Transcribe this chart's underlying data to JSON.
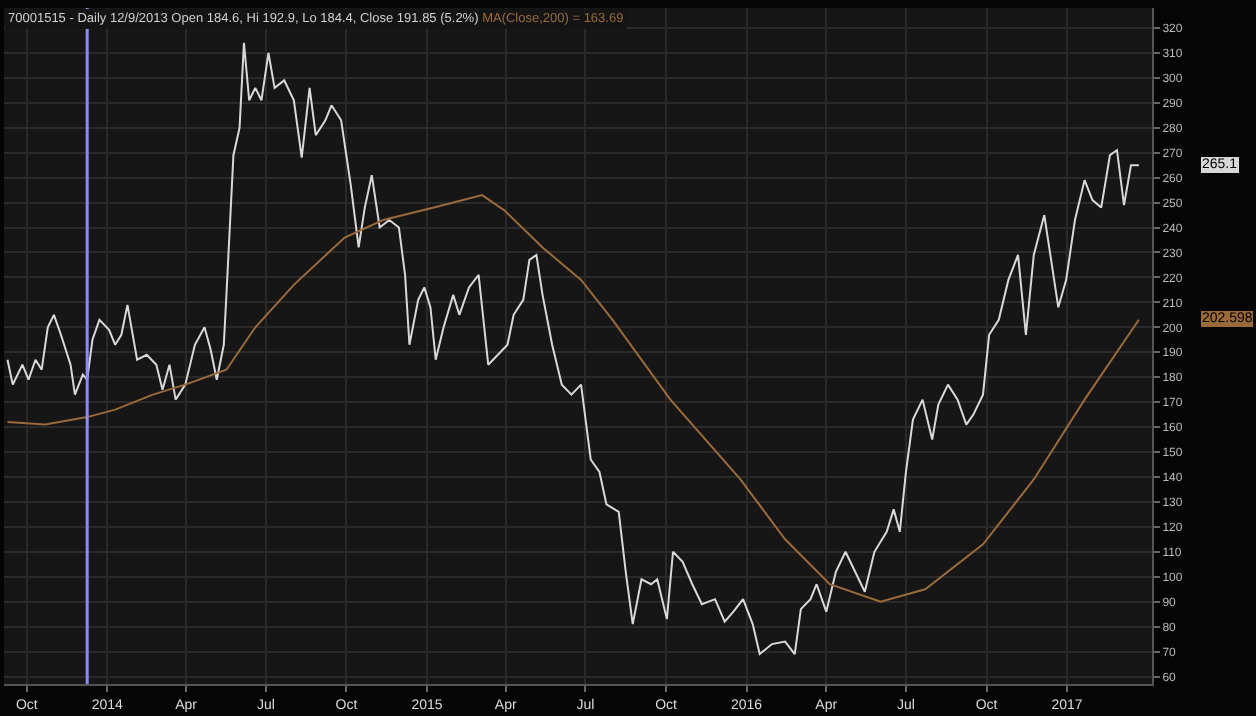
{
  "chart_data": {
    "type": "line",
    "title": "70001515 - Daily 12/9/2013 Open 184.6, Hi 192.9, Lo 184.4, Close 191.85 (5.2%)",
    "subtitle": "MA(Close,200) = 163.69",
    "series": [
      {
        "color": "#d8d8d8",
        "x": [
          "2013-09-09",
          "2013-09-15",
          "2013-09-26",
          "2013-10-03",
          "2013-10-11",
          "2013-10-18",
          "2013-10-25",
          "2013-11-01",
          "2013-11-09",
          "2013-11-20",
          "2013-11-25",
          "2013-12-04",
          "2013-12-09",
          "2013-12-15",
          "2013-12-23",
          "2014-01-03",
          "2014-01-10",
          "2014-01-17",
          "2014-01-24",
          "2014-02-04",
          "2014-02-15",
          "2014-02-26",
          "2014-03-05",
          "2014-03-13",
          "2014-03-20",
          "2014-03-31",
          "2014-04-11",
          "2014-04-22",
          "2014-04-29",
          "2014-05-06",
          "2014-05-14",
          "2014-05-17",
          "2014-05-25",
          "2014-06-01",
          "2014-06-06",
          "2014-06-12",
          "2014-06-19",
          "2014-06-26",
          "2014-07-04",
          "2014-07-11",
          "2014-07-22",
          "2014-08-02",
          "2014-08-11",
          "2014-08-20",
          "2014-08-27",
          "2014-09-07",
          "2014-09-14",
          "2014-09-25",
          "2014-10-06",
          "2014-10-15",
          "2014-10-22",
          "2014-10-30",
          "2014-11-08",
          "2014-11-19",
          "2014-11-30",
          "2014-12-07",
          "2014-12-12",
          "2014-12-22",
          "2014-12-29",
          "2015-01-05",
          "2015-01-11",
          "2015-01-20",
          "2015-01-31",
          "2015-02-07",
          "2015-02-18",
          "2015-03-01",
          "2015-03-12",
          "2015-03-23",
          "2015-04-03",
          "2015-04-10",
          "2015-04-21",
          "2015-04-28",
          "2015-05-06",
          "2015-05-13",
          "2015-05-24",
          "2015-06-04",
          "2015-06-15",
          "2015-06-26",
          "2015-07-07",
          "2015-07-17",
          "2015-07-25",
          "2015-08-08",
          "2015-08-16",
          "2015-08-24",
          "2015-09-03",
          "2015-09-14",
          "2015-09-21",
          "2015-10-02",
          "2015-10-09",
          "2015-10-20",
          "2015-10-31",
          "2015-11-11",
          "2015-11-26",
          "2015-12-07",
          "2015-12-17",
          "2015-12-28",
          "2016-01-08",
          "2016-01-16",
          "2016-01-30",
          "2016-02-14",
          "2016-02-25",
          "2016-03-03",
          "2016-03-14",
          "2016-03-21",
          "2016-04-01",
          "2016-04-12",
          "2016-04-23",
          "2016-05-04",
          "2016-05-15",
          "2016-05-26",
          "2016-06-09",
          "2016-06-17",
          "2016-06-24",
          "2016-07-01",
          "2016-07-09",
          "2016-07-20",
          "2016-07-31",
          "2016-08-07",
          "2016-08-18",
          "2016-08-29",
          "2016-09-08",
          "2016-09-16",
          "2016-09-27",
          "2016-10-04",
          "2016-10-15",
          "2016-10-26",
          "2016-11-06",
          "2016-11-15",
          "2016-11-24",
          "2016-12-06",
          "2016-12-22",
          "2016-12-31",
          "2017-01-10",
          "2017-01-21",
          "2017-01-30",
          "2017-02-09",
          "2017-02-19",
          "2017-02-27",
          "2017-03-07",
          "2017-03-15",
          "2017-03-24"
        ],
        "values": [
          187,
          177,
          185,
          179,
          187,
          183,
          200,
          205,
          197,
          185,
          173,
          181,
          179,
          195,
          203,
          199,
          193,
          197,
          209,
          187,
          189,
          185,
          175,
          185,
          171,
          177,
          193,
          200,
          191,
          179,
          193,
          213,
          269,
          280,
          314,
          291,
          296,
          291,
          310,
          296,
          299,
          291,
          268,
          296,
          277,
          283,
          289,
          283,
          257,
          232,
          248,
          261,
          240,
          243,
          240,
          221,
          193,
          211,
          216,
          208,
          187,
          200,
          213,
          205,
          216,
          221,
          185,
          189,
          193,
          205,
          211,
          227,
          229,
          213,
          193,
          177,
          173,
          177,
          147,
          142,
          129,
          126,
          102,
          81,
          99,
          97,
          99,
          83,
          110,
          106,
          97,
          89,
          91,
          82,
          86,
          91,
          81,
          69,
          73,
          74,
          69,
          87,
          91,
          97,
          86,
          102,
          110,
          102,
          94,
          110,
          118,
          127,
          118,
          142,
          163,
          171,
          155,
          169,
          177,
          171,
          161,
          165,
          173,
          197,
          203,
          219,
          229,
          197,
          229,
          245,
          208,
          219,
          243,
          259,
          251,
          248,
          269,
          271,
          249,
          265,
          265
        ]
      },
      {
        "color": "#9a6a3a",
        "x": [
          "2013-09-09",
          "2013-10-22",
          "2013-12-09",
          "2014-01-10",
          "2014-02-22",
          "2014-03-31",
          "2014-05-17",
          "2014-06-19",
          "2014-08-02",
          "2014-09-29",
          "2014-11-12",
          "2015-01-09",
          "2015-03-05",
          "2015-03-30",
          "2015-05-13",
          "2015-06-26",
          "2015-08-01",
          "2015-10-06",
          "2015-12-25",
          "2016-02-14",
          "2016-04-05",
          "2016-06-02",
          "2016-07-23",
          "2016-09-27",
          "2016-11-24",
          "2017-01-21",
          "2017-03-24"
        ],
        "values": [
          162,
          161,
          164,
          167,
          173,
          177,
          183,
          200,
          217,
          236,
          243,
          248,
          253,
          247,
          232,
          219,
          203,
          171,
          139,
          115,
          97,
          90,
          95,
          113,
          139,
          171,
          203
        ]
      }
    ],
    "annotations": [
      "265.1",
      "202.598"
    ],
    "ref_lines": [
      {
        "axis": "x",
        "value": "2013-12-09",
        "label": null,
        "color": "#8c8cff"
      }
    ],
    "xlim": [
      "2013-09-05",
      "2017-04-08"
    ],
    "xticks": [
      {
        "value": "2013-10-01",
        "label": "Oct"
      },
      {
        "value": "2014-01-01",
        "label": "2014"
      },
      {
        "value": "2014-04-01",
        "label": "Apr"
      },
      {
        "value": "2014-07-01",
        "label": "Jul"
      },
      {
        "value": "2014-10-01",
        "label": "Oct"
      },
      {
        "value": "2015-01-01",
        "label": "2015"
      },
      {
        "value": "2015-04-01",
        "label": "Apr"
      },
      {
        "value": "2015-07-01",
        "label": "Jul"
      },
      {
        "value": "2015-10-01",
        "label": "Oct"
      },
      {
        "value": "2016-01-01",
        "label": "2016"
      },
      {
        "value": "2016-04-01",
        "label": "Apr"
      },
      {
        "value": "2016-07-01",
        "label": "Jul"
      },
      {
        "value": "2016-10-01",
        "label": "Oct"
      },
      {
        "value": "2017-01-01",
        "label": "2017"
      }
    ],
    "ylim": [
      57,
      328
    ],
    "yticks": [
      60,
      70,
      80,
      90,
      100,
      110,
      120,
      130,
      140,
      150,
      160,
      170,
      180,
      190,
      200,
      210,
      220,
      230,
      240,
      250,
      260,
      270,
      280,
      290,
      300,
      310,
      320
    ],
    "grid": true,
    "marker": "none",
    "line_style": "solid"
  }
}
